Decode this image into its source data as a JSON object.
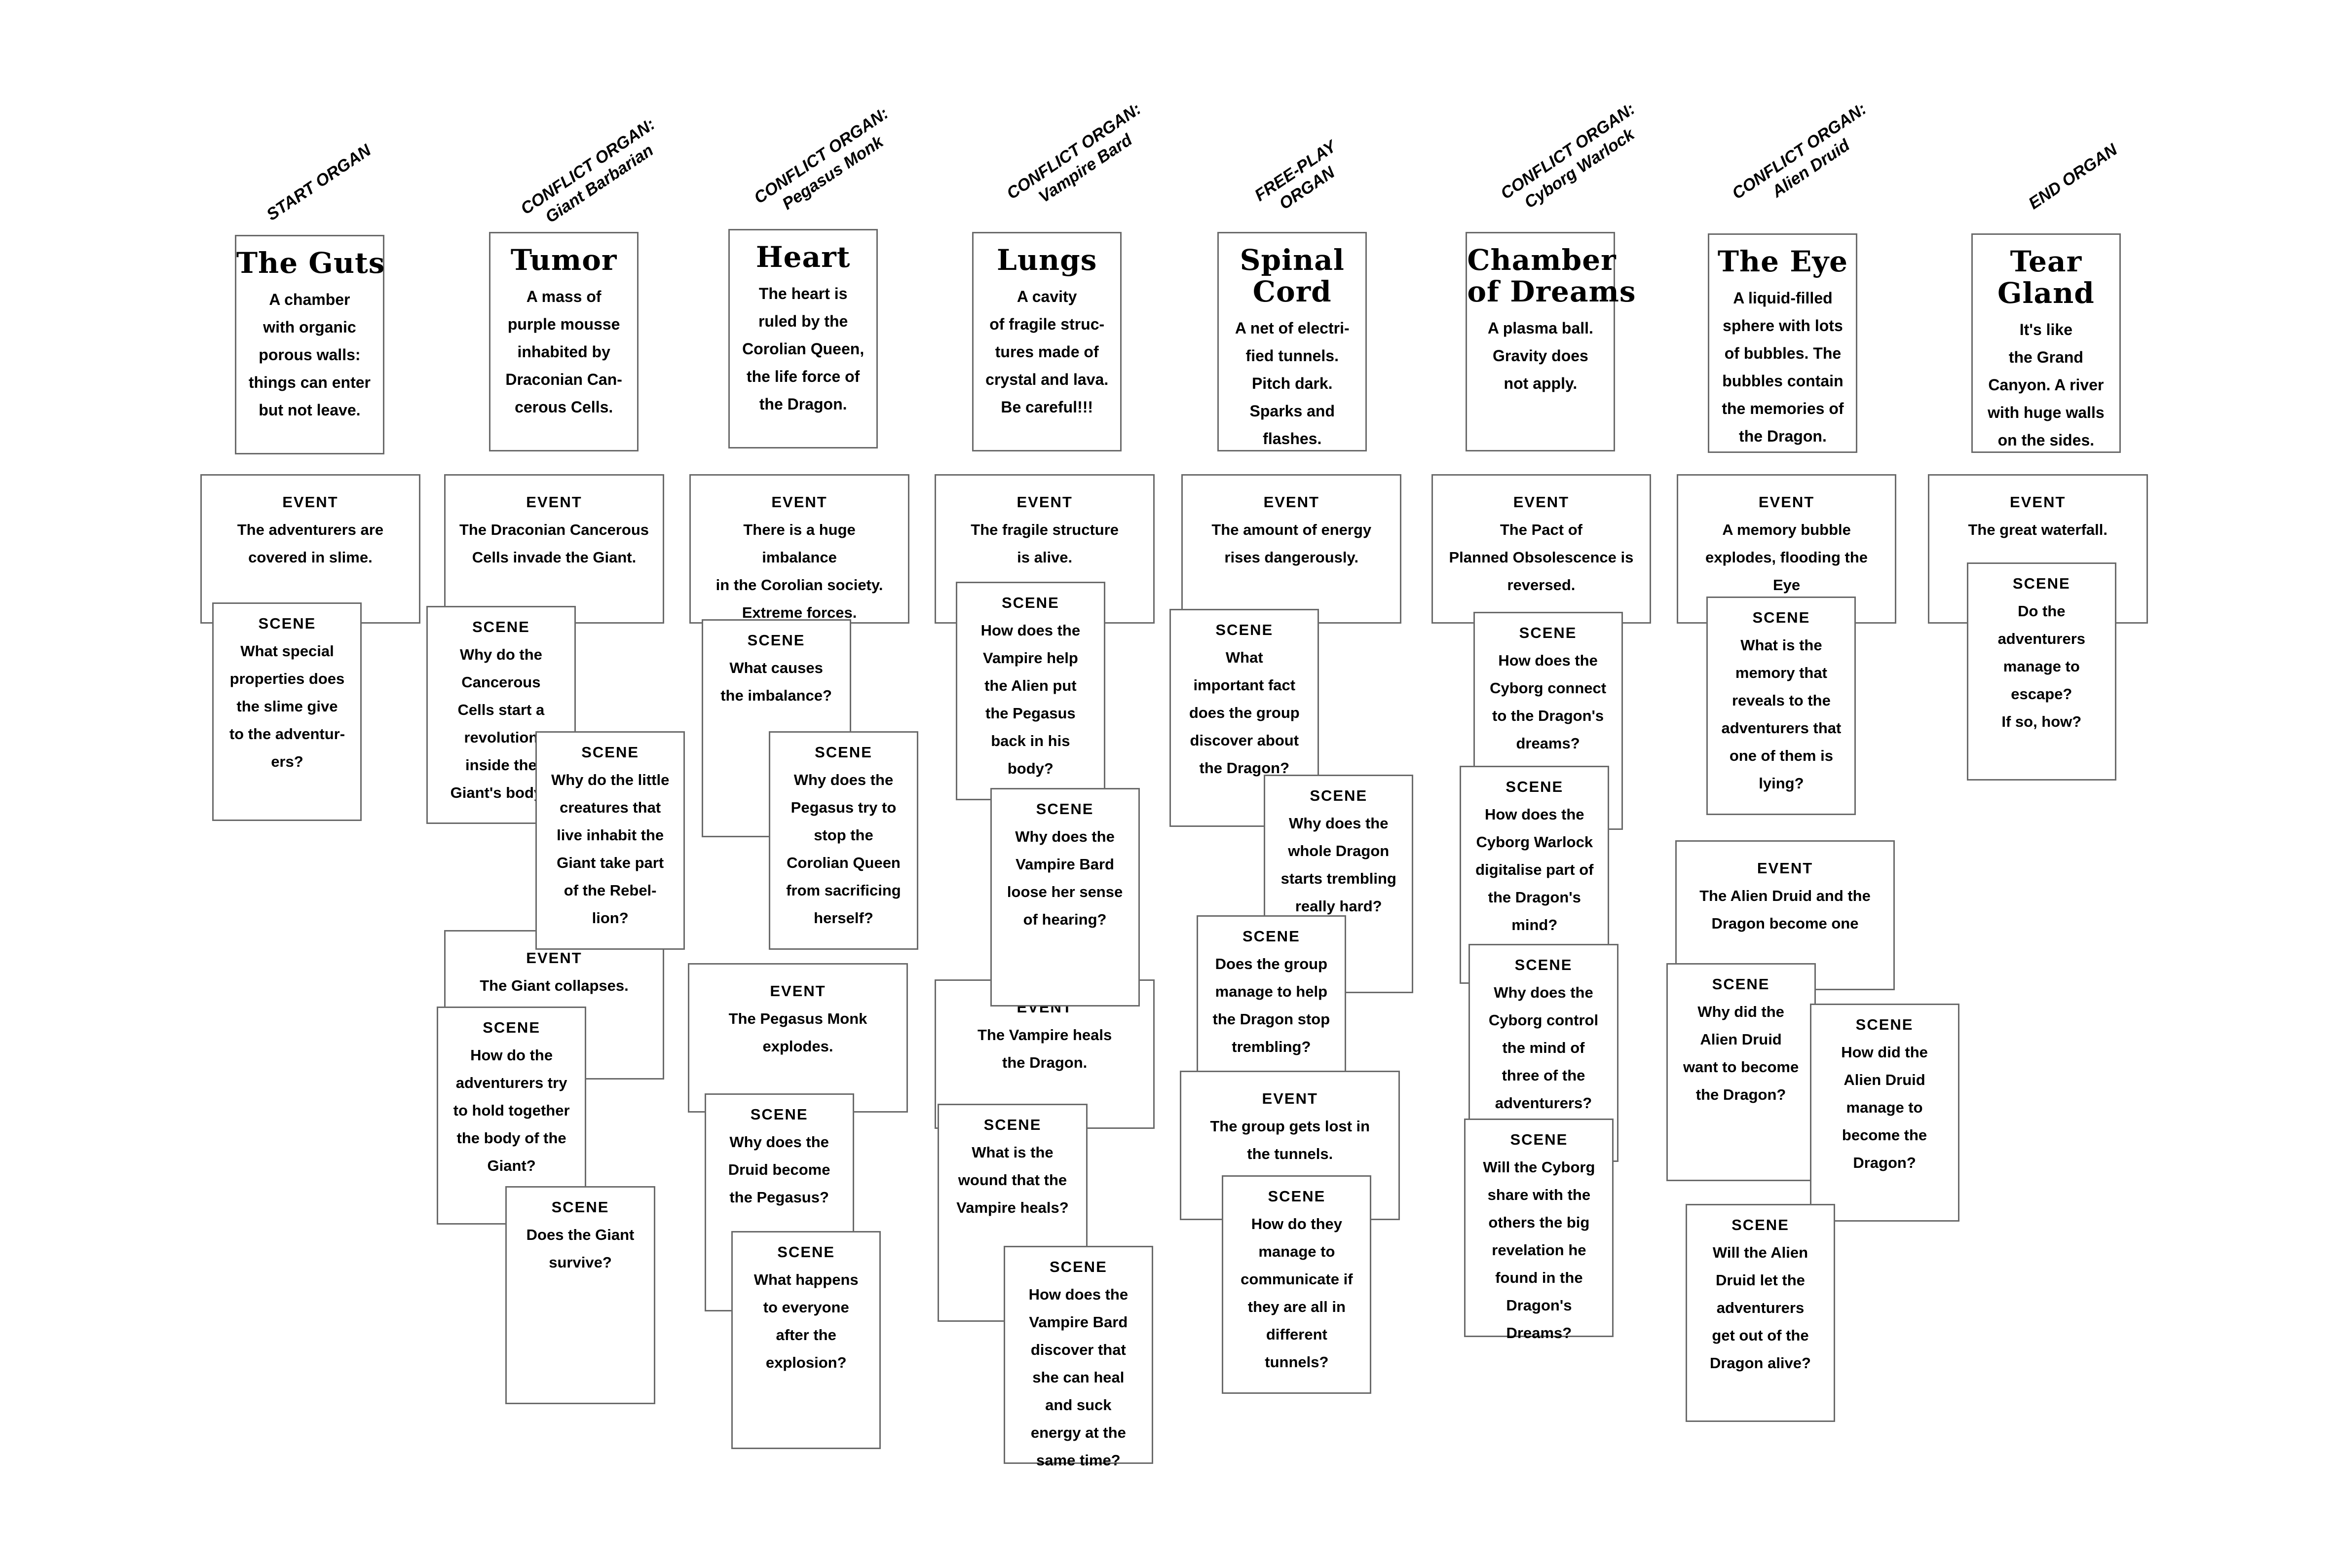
{
  "headers": [
    {
      "lines": [
        "START ORGAN"
      ]
    },
    {
      "lines": [
        "CONFLICT ORGAN:",
        "Giant Barbarian"
      ]
    },
    {
      "lines": [
        "CONFLICT ORGAN:",
        "Pegasus Monk"
      ]
    },
    {
      "lines": [
        "CONFLICT ORGAN:",
        "Vampire Bard"
      ]
    },
    {
      "lines": [
        "FREE-PLAY",
        "ORGAN"
      ]
    },
    {
      "lines": [
        "CONFLICT ORGAN:",
        "Cyborg Warlock"
      ]
    },
    {
      "lines": [
        "CONFLICT ORGAN:",
        "Alien Druid"
      ]
    },
    {
      "lines": [
        "END ORGAN"
      ]
    }
  ],
  "labels": {
    "event": "EVENT",
    "scene": "SCENE"
  },
  "cards": [
    {
      "kind": "organ",
      "title": "The Guts",
      "text": "A chamber\nwith organic\nporous walls:\nthings can enter\nbut not leave."
    },
    {
      "kind": "event",
      "text": "The adventurers are\ncovered in slime."
    },
    {
      "kind": "scene",
      "text": "What special\nproperties does\nthe slime give\nto the adventur-\ners?"
    },
    {
      "kind": "organ",
      "title": "Tumor",
      "text": "A mass of\npurple mousse\ninhabited by\nDraconian Can-\ncerous Cells."
    },
    {
      "kind": "event",
      "text": "The Draconian Cancerous\nCells invade the Giant."
    },
    {
      "kind": "scene",
      "text": "Why do the\nCancerous\nCells start a\nrevolution\ninside the\nGiant's body?"
    },
    {
      "kind": "event",
      "text": "The Giant collapses."
    },
    {
      "kind": "scene",
      "text": "Why do the little\ncreatures that\nlive inhabit the\nGiant take part\nof the Rebel-\nlion?"
    },
    {
      "kind": "scene",
      "text": "How do the\nadventurers try\nto hold together\nthe body of the\nGiant?"
    },
    {
      "kind": "scene",
      "text": "Does the Giant\nsurvive?"
    },
    {
      "kind": "organ",
      "title": "Heart",
      "text": "The heart is\nruled by the\nCorolian Queen,\nthe life force of\nthe Dragon."
    },
    {
      "kind": "event",
      "text": "There is a huge\nimbalance\nin the Corolian society.\nExtreme forces."
    },
    {
      "kind": "scene",
      "text": "What causes\nthe imbalance?"
    },
    {
      "kind": "scene",
      "text": "Why does the\nPegasus try to\nstop the\nCorolian Queen\nfrom sacrificing\nherself?"
    },
    {
      "kind": "event",
      "text": "The Pegasus Monk\nexplodes."
    },
    {
      "kind": "scene",
      "text": "Why does the\nDruid become\nthe Pegasus?"
    },
    {
      "kind": "scene",
      "text": "What happens\nto everyone\nafter the\nexplosion?"
    },
    {
      "kind": "organ",
      "title": "Lungs",
      "text": "A cavity\nof fragile struc-\ntures made of\ncrystal and lava.\nBe careful!!!"
    },
    {
      "kind": "event",
      "text": "The fragile structure\nis alive."
    },
    {
      "kind": "scene",
      "text": "How does the\nVampire help\nthe Alien put\nthe Pegasus\nback in his\nbody?"
    },
    {
      "kind": "event",
      "text": "The Vampire heals\nthe Dragon."
    },
    {
      "kind": "scene",
      "text": "Why does the\nVampire Bard\nloose her sense\nof hearing?"
    },
    {
      "kind": "scene",
      "text": "What is the\nwound that the\nVampire heals?"
    },
    {
      "kind": "scene",
      "text": "How does the\nVampire Bard\ndiscover that\nshe can heal\nand suck\nenergy at the\nsame time?"
    },
    {
      "kind": "organ",
      "title": "Spinal\nCord",
      "text": "A net of electri-\nfied tunnels.\nPitch dark.\nSparks and\nflashes."
    },
    {
      "kind": "event",
      "text": "The amount of energy\nrises dangerously."
    },
    {
      "kind": "scene",
      "text": "What\nimportant fact\ndoes the group\ndiscover about\nthe Dragon?"
    },
    {
      "kind": "scene",
      "text": "Why does the\nwhole Dragon\nstarts trembling\nreally hard?"
    },
    {
      "kind": "scene",
      "text": "Does the group\nmanage to help\nthe Dragon stop\ntrembling?"
    },
    {
      "kind": "event",
      "text": "The group gets lost in\nthe tunnels."
    },
    {
      "kind": "scene",
      "text": "How do they\nmanage to\ncommunicate if\nthey are all in\ndifferent\ntunnels?"
    },
    {
      "kind": "organ",
      "title": "Chamber\nof Dreams",
      "text": "A plasma ball.\nGravity does\nnot apply."
    },
    {
      "kind": "event",
      "text": "The Pact of\nPlanned Obsolescence is\nreversed."
    },
    {
      "kind": "scene",
      "text": "How does the\nCyborg connect\nto the Dragon's\ndreams?"
    },
    {
      "kind": "scene",
      "text": "How does the\nCyborg Warlock\ndigitalise part of\nthe Dragon's\nmind?"
    },
    {
      "kind": "scene",
      "text": "Why does the\nCyborg control\nthe mind of\nthree of the\nadventurers?"
    },
    {
      "kind": "scene",
      "text": "Will the Cyborg\nshare with the\nothers the big\nrevelation he\nfound in the\nDragon's\nDreams?"
    },
    {
      "kind": "organ",
      "title": "The Eye",
      "text": "A liquid-filled\nsphere with lots\nof bubbles. The\nbubbles contain\nthe memories of\nthe Dragon."
    },
    {
      "kind": "event",
      "text": "A memory bubble\nexplodes, flooding the\nEye"
    },
    {
      "kind": "scene",
      "text": "What is the\nmemory that\nreveals to the\nadventurers that\none of them is\nlying?"
    },
    {
      "kind": "event",
      "text": "The Alien Druid and the\nDragon become one"
    },
    {
      "kind": "scene",
      "text": "Why did the\nAlien Druid\nwant to become\nthe Dragon?"
    },
    {
      "kind": "scene",
      "text": "How did the\nAlien Druid\nmanage to\nbecome the\nDragon?"
    },
    {
      "kind": "scene",
      "text": "Will the Alien\nDruid let the\nadventurers\nget out of the\nDragon alive?"
    },
    {
      "kind": "organ",
      "title": "Tear\nGland",
      "text": "It's like\nthe Grand\nCanyon. A river\nwith huge walls\non the sides."
    },
    {
      "kind": "event",
      "text": "The great waterfall."
    },
    {
      "kind": "scene",
      "text": "Do the\nadventurers\nmanage to\nescape?\nIf so, how?"
    }
  ]
}
